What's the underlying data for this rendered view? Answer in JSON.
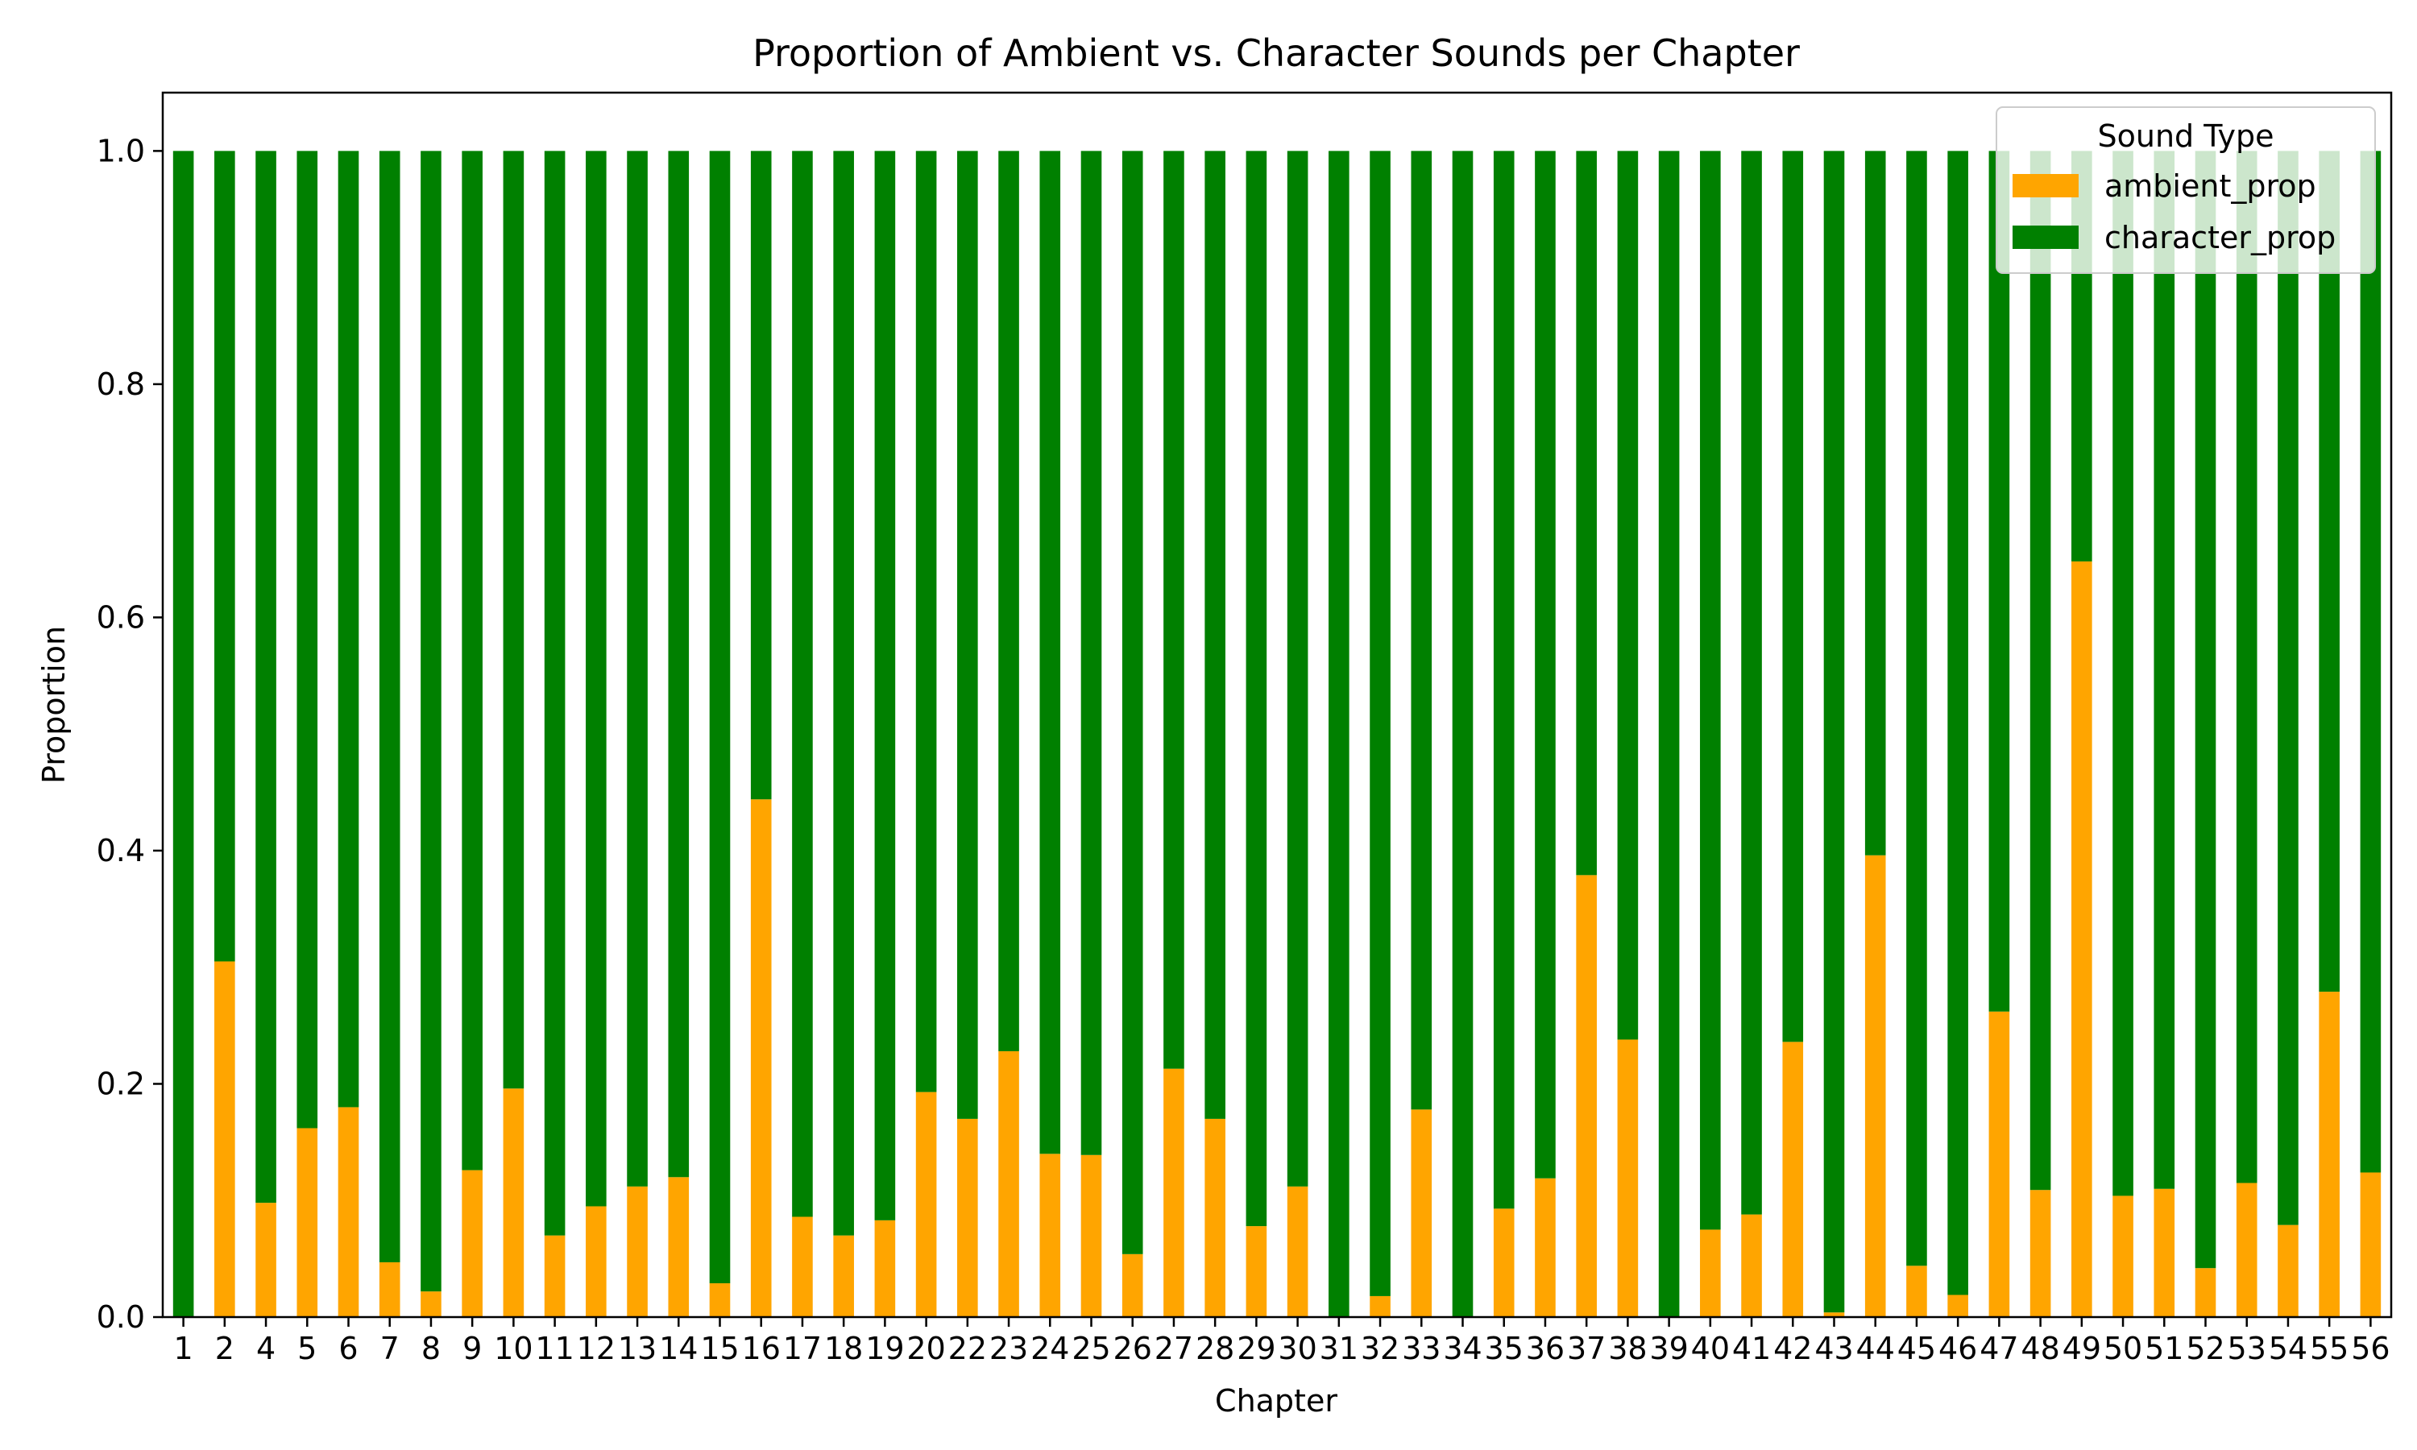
{
  "chart_data": {
    "type": "bar",
    "stacked": true,
    "title": "Proportion of Ambient vs. Character Sounds per Chapter",
    "xlabel": "Chapter",
    "ylabel": "Proportion",
    "ylim": [
      0,
      1.05
    ],
    "yticks": [
      0.0,
      0.2,
      0.4,
      0.6,
      0.8,
      1.0
    ],
    "grid": false,
    "legend": {
      "title": "Sound Type",
      "placement": "top-right"
    },
    "categories": [
      "1",
      "2",
      "4",
      "5",
      "6",
      "7",
      "8",
      "9",
      "10",
      "11",
      "12",
      "13",
      "14",
      "15",
      "16",
      "17",
      "18",
      "19",
      "20",
      "22",
      "23",
      "24",
      "25",
      "26",
      "27",
      "28",
      "29",
      "30",
      "31",
      "32",
      "33",
      "34",
      "35",
      "36",
      "37",
      "38",
      "39",
      "40",
      "41",
      "42",
      "43",
      "44",
      "45",
      "46",
      "47",
      "48",
      "49",
      "50",
      "51",
      "52",
      "53",
      "54",
      "55",
      "56"
    ],
    "series": [
      {
        "name": "ambient_prop",
        "color": "#FFA500",
        "values": [
          0.0,
          0.305,
          0.098,
          0.162,
          0.18,
          0.047,
          0.022,
          0.126,
          0.196,
          0.07,
          0.095,
          0.112,
          0.12,
          0.029,
          0.444,
          0.086,
          0.07,
          0.083,
          0.193,
          0.17,
          0.228,
          0.14,
          0.139,
          0.054,
          0.213,
          0.17,
          0.078,
          0.112,
          0.0,
          0.018,
          0.178,
          0.0,
          0.093,
          0.119,
          0.379,
          0.238,
          0.0,
          0.075,
          0.088,
          0.236,
          0.004,
          0.396,
          0.044,
          0.019,
          0.262,
          0.109,
          0.648,
          0.104,
          0.11,
          0.042,
          0.115,
          0.079,
          0.279,
          0.124
        ]
      },
      {
        "name": "character_prop",
        "color": "#008000",
        "values": [
          1.0,
          0.695,
          0.902,
          0.838,
          0.82,
          0.953,
          0.978,
          0.874,
          0.804,
          0.93,
          0.905,
          0.888,
          0.88,
          0.971,
          0.556,
          0.914,
          0.93,
          0.917,
          0.807,
          0.83,
          0.772,
          0.86,
          0.861,
          0.946,
          0.787,
          0.83,
          0.922,
          0.888,
          1.0,
          0.982,
          0.822,
          1.0,
          0.907,
          0.881,
          0.621,
          0.762,
          1.0,
          0.925,
          0.912,
          0.764,
          0.996,
          0.604,
          0.956,
          0.981,
          0.738,
          0.891,
          0.352,
          0.896,
          0.89,
          0.958,
          0.885,
          0.921,
          0.721,
          0.876
        ]
      }
    ]
  }
}
